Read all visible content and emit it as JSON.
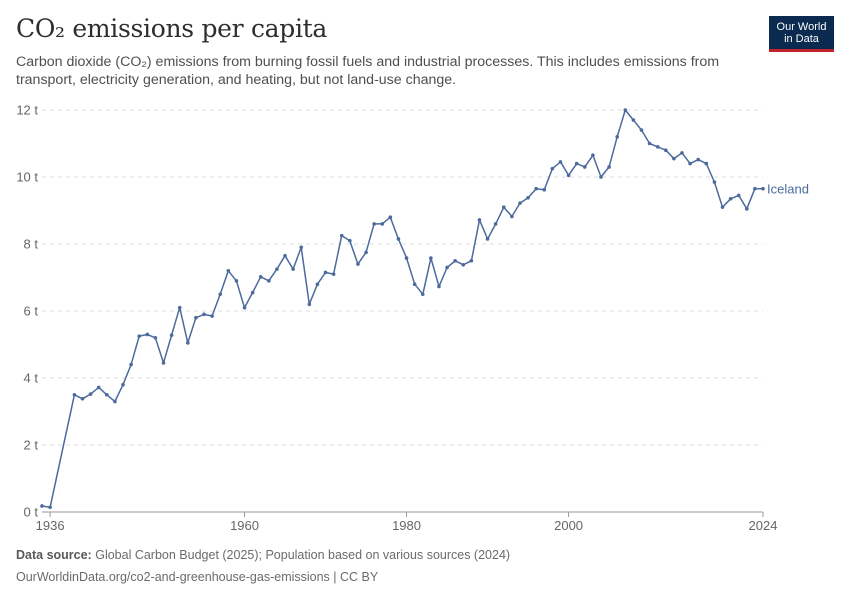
{
  "header": {
    "title": "CO₂ emissions per capita",
    "subtitle": "Carbon dioxide (CO₂) emissions from burning fossil fuels and industrial processes. This includes emissions from transport, electricity generation, and heating, but not land-use change."
  },
  "logo": {
    "line1": "Our World",
    "line2": "in Data"
  },
  "footer": {
    "source_label": "Data source:",
    "source_text": "Global Carbon Budget (2025); Population based on various sources (2024)",
    "link_text": "OurWorldinData.org/co2-and-greenhouse-gas-emissions | CC BY"
  },
  "colors": {
    "series": "#4c6a9c",
    "grid": "#dddddd",
    "brand": "#0a2a4f",
    "brand_accent": "#c4222b"
  },
  "chart_data": {
    "type": "line",
    "xlim": [
      1935,
      2024
    ],
    "ylim": [
      0,
      12
    ],
    "x_ticks": [
      1936,
      1960,
      1980,
      2000,
      2024
    ],
    "y_ticks": [
      0,
      2,
      4,
      6,
      8,
      10,
      12
    ],
    "y_tick_labels": [
      "0 t",
      "2 t",
      "4 t",
      "6 t",
      "8 t",
      "10 t",
      "12 t"
    ],
    "grid": "horizontal-dashed",
    "legend": "inline-right",
    "series": [
      {
        "name": "Iceland",
        "x": [
          1935,
          1936,
          1939,
          1940,
          1941,
          1942,
          1943,
          1944,
          1945,
          1946,
          1947,
          1948,
          1949,
          1950,
          1951,
          1952,
          1953,
          1954,
          1955,
          1956,
          1957,
          1958,
          1959,
          1960,
          1961,
          1962,
          1963,
          1964,
          1965,
          1966,
          1967,
          1968,
          1969,
          1970,
          1971,
          1972,
          1973,
          1974,
          1975,
          1976,
          1977,
          1978,
          1979,
          1980,
          1981,
          1982,
          1983,
          1984,
          1985,
          1986,
          1987,
          1988,
          1989,
          1990,
          1991,
          1992,
          1993,
          1994,
          1995,
          1996,
          1997,
          1998,
          1999,
          2000,
          2001,
          2002,
          2003,
          2004,
          2005,
          2006,
          2007,
          2008,
          2009,
          2010,
          2011,
          2012,
          2013,
          2014,
          2015,
          2016,
          2017,
          2018,
          2019,
          2020,
          2021,
          2022,
          2023,
          2024
        ],
        "values": [
          0.18,
          0.14,
          3.5,
          3.38,
          3.52,
          3.72,
          3.5,
          3.3,
          3.8,
          4.4,
          5.25,
          5.3,
          5.2,
          4.45,
          5.28,
          6.1,
          5.05,
          5.8,
          5.9,
          5.85,
          6.5,
          7.2,
          6.9,
          6.1,
          6.55,
          7.02,
          6.9,
          7.25,
          7.65,
          7.25,
          7.9,
          6.2,
          6.8,
          7.15,
          7.1,
          8.25,
          8.1,
          7.4,
          7.75,
          8.6,
          8.6,
          8.8,
          8.15,
          7.58,
          6.8,
          6.5,
          7.58,
          6.73,
          7.3,
          7.5,
          7.38,
          7.5,
          8.72,
          8.15,
          8.6,
          9.1,
          8.82,
          9.22,
          9.38,
          9.65,
          9.62,
          10.25,
          10.45,
          10.05,
          10.4,
          10.3,
          10.65,
          10.0,
          10.3,
          11.2,
          12.0,
          11.7,
          11.4,
          11.0,
          10.9,
          10.8,
          10.55,
          10.72,
          10.4,
          10.52,
          10.4,
          9.85,
          9.1,
          9.35,
          9.45,
          9.05,
          9.65,
          9.65
        ]
      }
    ]
  }
}
